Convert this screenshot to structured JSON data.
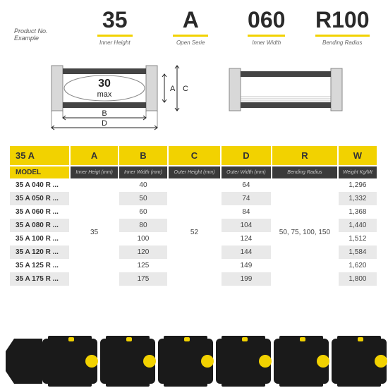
{
  "header": {
    "product_label": "Product No. Example",
    "cols": [
      {
        "value": "35",
        "sub": "Inner Height"
      },
      {
        "value": "A",
        "sub": "Open Serie"
      },
      {
        "value": "060",
        "sub": "Inner Width"
      },
      {
        "value": "R100",
        "sub": "Bending Radius"
      }
    ]
  },
  "diagram": {
    "inner_text": "30 max",
    "labels": {
      "A": "A",
      "B": "B",
      "C": "C",
      "D": "D"
    },
    "colors": {
      "rail_fill": "#d8d8d8",
      "rail_stroke": "#888888",
      "bar": "#444444",
      "text": "#222222",
      "arrow": "#222222"
    }
  },
  "table": {
    "corner": "35 A",
    "model_label": "MODEL",
    "columns": [
      {
        "head": "A",
        "sub": "Inner Heigt (mm)"
      },
      {
        "head": "B",
        "sub": "Inner Width (mm)"
      },
      {
        "head": "C",
        "sub": "Outer Height (mm)"
      },
      {
        "head": "D",
        "sub": "Outer Width (mm)"
      },
      {
        "head": "R",
        "sub": "Bending Radius"
      },
      {
        "head": "W",
        "sub": "Weight Kg/Mt"
      }
    ],
    "span_A": "35",
    "span_C": "52",
    "span_R": "50, 75, 100, 150",
    "rows": [
      {
        "model": "35 A 040 R ...",
        "B": "40",
        "D": "64",
        "W": "1,296"
      },
      {
        "model": "35 A 050 R ...",
        "B": "50",
        "D": "74",
        "W": "1,332"
      },
      {
        "model": "35 A 060 R ...",
        "B": "60",
        "D": "84",
        "W": "1,368"
      },
      {
        "model": "35 A 080 R ...",
        "B": "80",
        "D": "104",
        "W": "1,440"
      },
      {
        "model": "35 A 100 R ...",
        "B": "100",
        "D": "124",
        "W": "1,512"
      },
      {
        "model": "35 A 120 R ...",
        "B": "120",
        "D": "144",
        "W": "1,584"
      },
      {
        "model": "35 A 125 R ...",
        "B": "125",
        "D": "149",
        "W": "1,620"
      },
      {
        "model": "35 A 175 R ...",
        "B": "175",
        "D": "199",
        "W": "1,800"
      }
    ]
  },
  "chain": {
    "link_body": "#1a1a1a",
    "dot": "#f2d200",
    "count": 6
  },
  "colors": {
    "brand_yellow": "#f2d200",
    "dark": "#3a3a3a"
  }
}
